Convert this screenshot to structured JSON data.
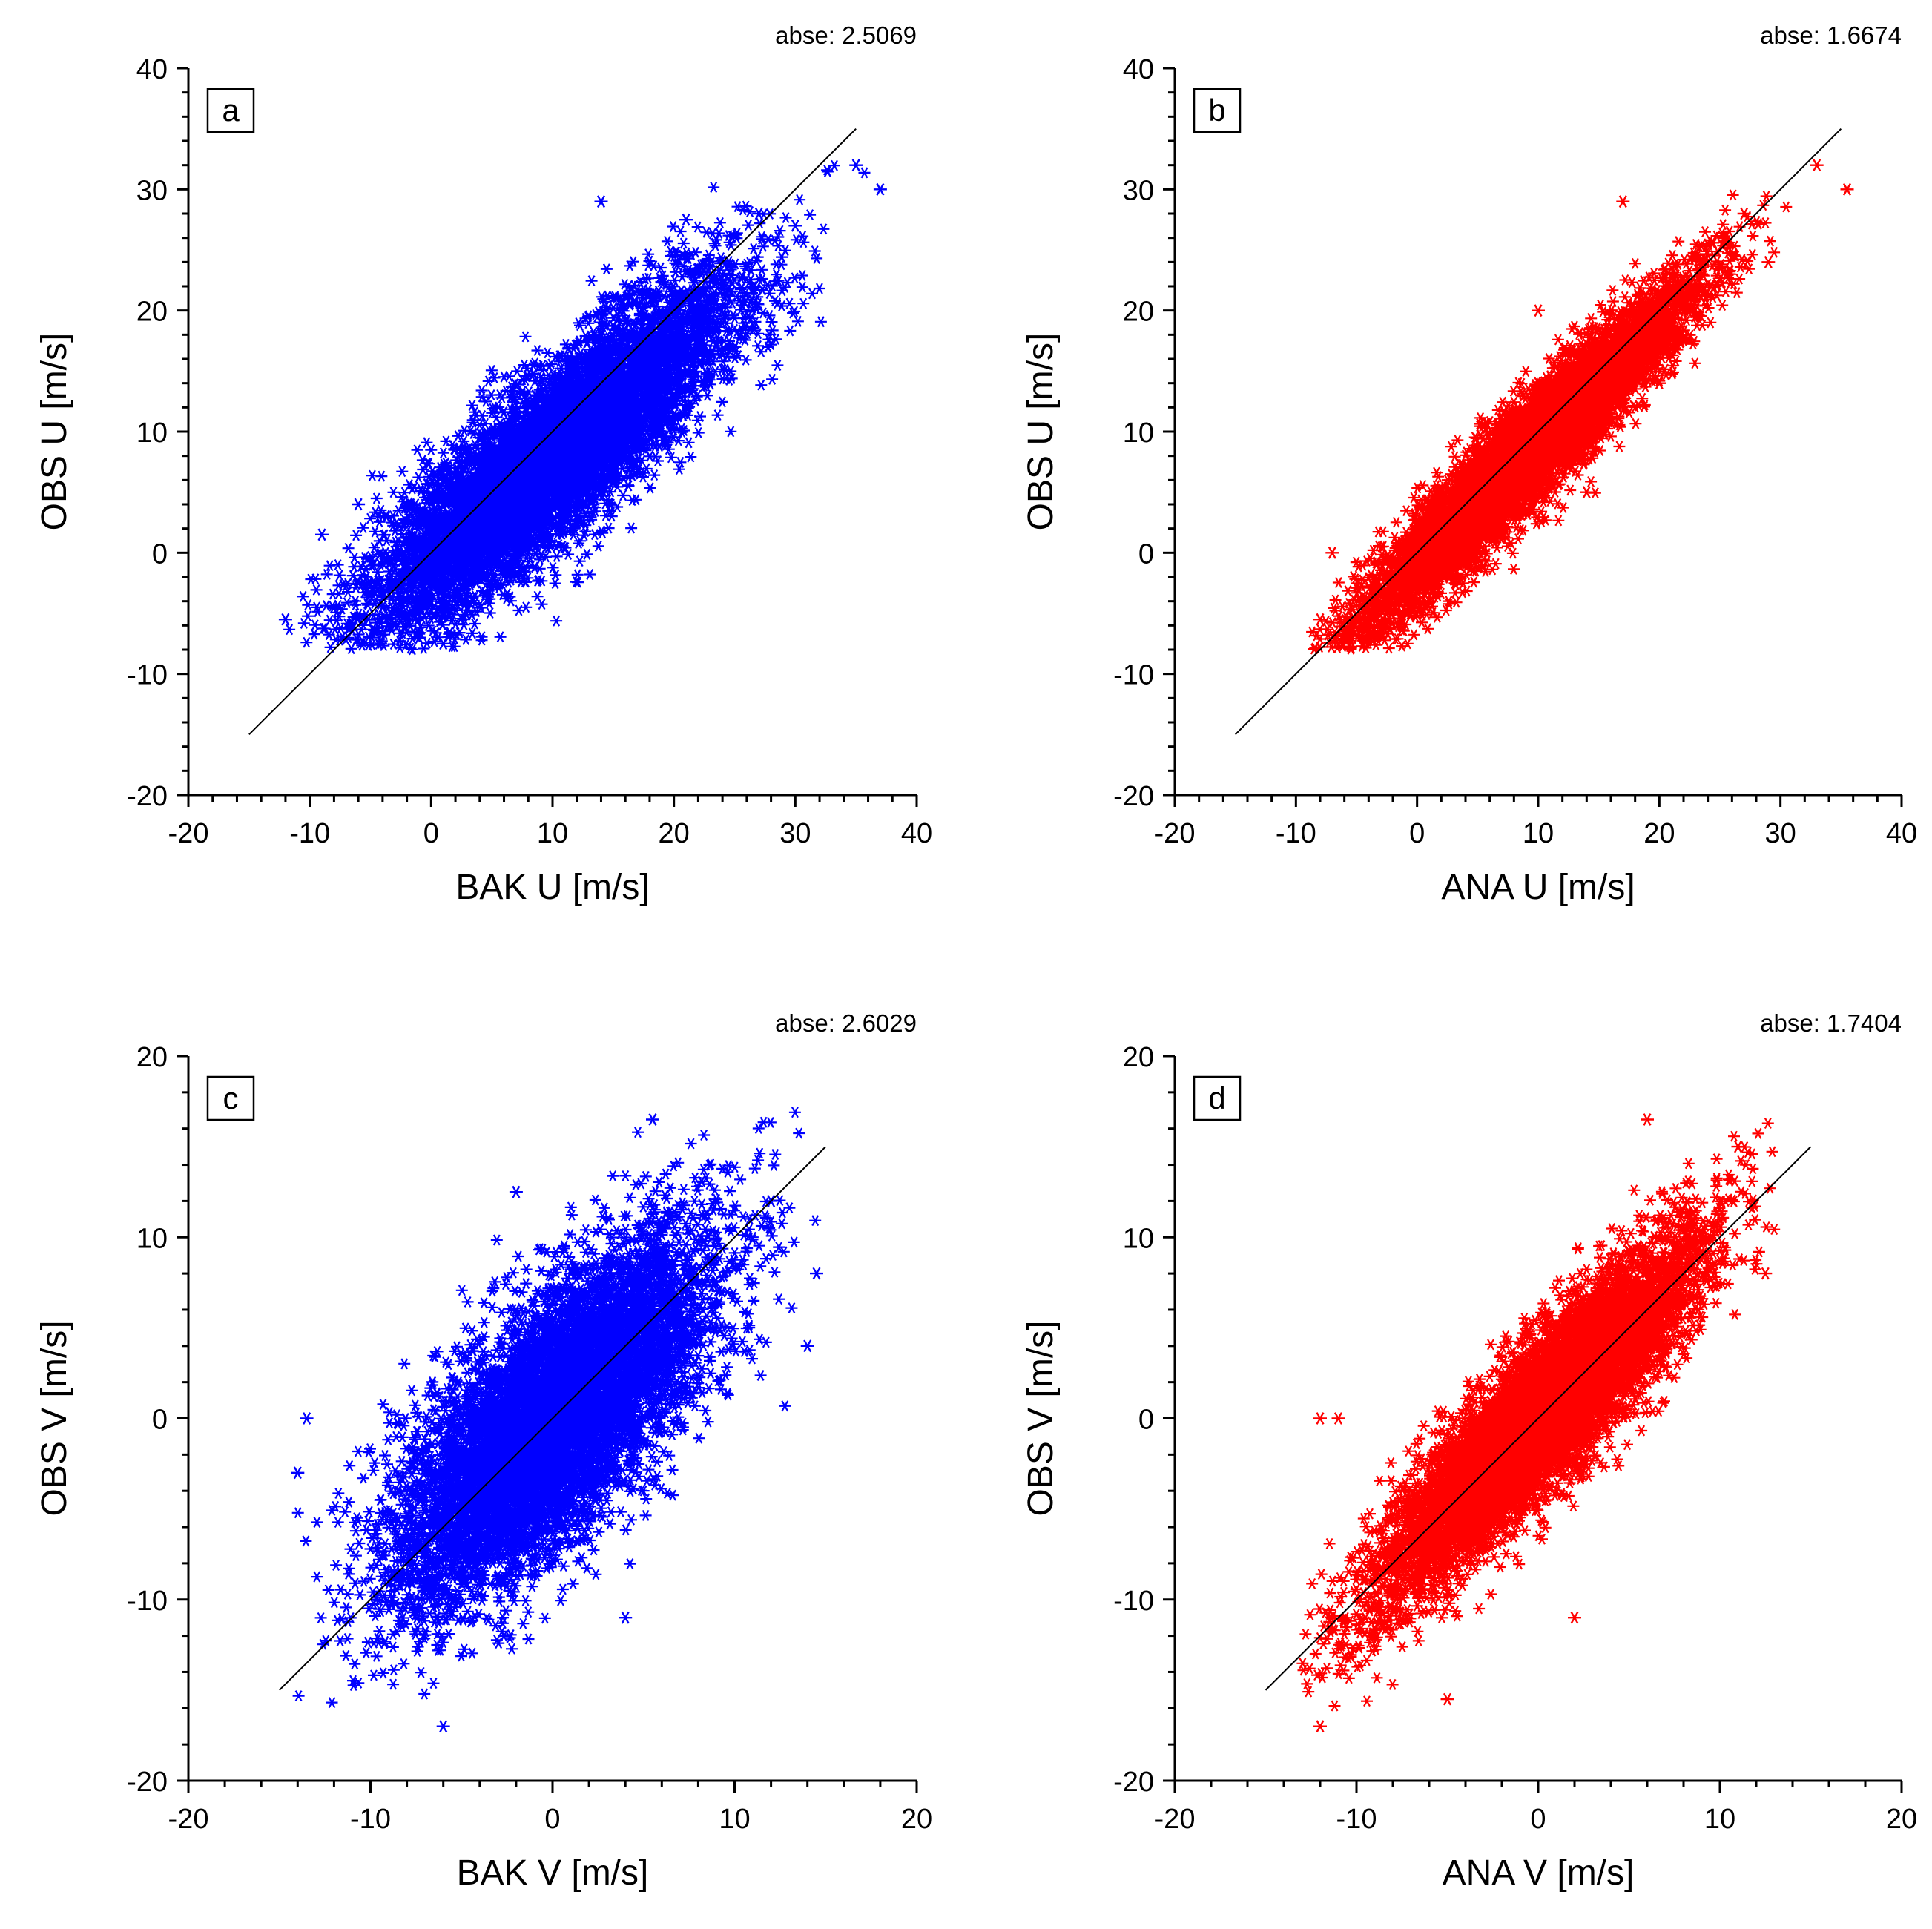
{
  "chart_data": [
    {
      "type": "scatter",
      "panel": "a",
      "xlabel": "BAK U [m/s]",
      "ylabel": "OBS U [m/s]",
      "stat_label": "abse:",
      "stat_value": "2.5069",
      "xlim": [
        -20,
        40
      ],
      "ylim": [
        -20,
        40
      ],
      "ticks": [
        -20,
        -10,
        0,
        10,
        20,
        30,
        40
      ],
      "reference_line": [
        [
          -15,
          -15
        ],
        [
          35,
          35
        ]
      ],
      "marker": "asterisk",
      "color": "#0000ff",
      "cloud": {
        "x_center": 10,
        "y_center": 8,
        "x_sd": 7.4,
        "y_sd": 7.0,
        "r": 0.86,
        "x_range": [
          -12,
          37
        ],
        "y_range": [
          -8,
          32
        ],
        "count": 7000
      },
      "points": [
        [
          14,
          29
        ],
        [
          37,
          30
        ],
        [
          35,
          32
        ],
        [
          27,
          28
        ],
        [
          30,
          27
        ],
        [
          21,
          27.5
        ],
        [
          -12,
          -5.5
        ],
        [
          -9,
          1.5
        ],
        [
          -6,
          4
        ],
        [
          1,
          -7.5
        ],
        [
          -1,
          -7
        ]
      ]
    },
    {
      "type": "scatter",
      "panel": "b",
      "xlabel": "ANA U [m/s]",
      "ylabel": "OBS U [m/s]",
      "stat_label": "abse:",
      "stat_value": "1.6674",
      "xlim": [
        -20,
        40
      ],
      "ylim": [
        -20,
        40
      ],
      "ticks": [
        -20,
        -10,
        0,
        10,
        20,
        30,
        40
      ],
      "reference_line": [
        [
          -15,
          -15
        ],
        [
          35,
          35
        ]
      ],
      "marker": "asterisk",
      "color": "#ff0000",
      "cloud": {
        "x_center": 9,
        "y_center": 8,
        "x_sd": 6.8,
        "y_sd": 7.0,
        "r": 0.95,
        "x_range": [
          -9,
          36
        ],
        "y_range": [
          -8,
          32
        ],
        "count": 7000
      },
      "points": [
        [
          17,
          29
        ],
        [
          33,
          32
        ],
        [
          35.5,
          30
        ],
        [
          29,
          24
        ],
        [
          27,
          28
        ],
        [
          -8,
          -5.5
        ],
        [
          -7,
          0
        ],
        [
          10,
          20
        ],
        [
          20,
          14
        ],
        [
          14,
          5
        ]
      ]
    },
    {
      "type": "scatter",
      "panel": "c",
      "xlabel": "BAK V [m/s]",
      "ylabel": "OBS V [m/s]",
      "stat_label": "abse:",
      "stat_value": "2.6029",
      "xlim": [
        -20,
        20
      ],
      "ylim": [
        -20,
        20
      ],
      "ticks": [
        -20,
        -10,
        0,
        10,
        20
      ],
      "reference_line": [
        [
          -15,
          -15
        ],
        [
          15,
          15
        ]
      ],
      "marker": "asterisk",
      "color": "#0000ff",
      "cloud": {
        "x_center": 0,
        "y_center": 0,
        "x_sd": 4.3,
        "y_sd": 4.9,
        "r": 0.71,
        "x_range": [
          -14,
          15
        ],
        "y_range": [
          -17,
          17
        ],
        "count": 7000
      },
      "points": [
        [
          5.5,
          16.5
        ],
        [
          -2,
          12.5
        ],
        [
          -14,
          -3
        ],
        [
          -13.5,
          0
        ],
        [
          -6,
          -17
        ],
        [
          14.5,
          8
        ],
        [
          12,
          12
        ],
        [
          4,
          -11
        ],
        [
          14,
          4
        ]
      ]
    },
    {
      "type": "scatter",
      "panel": "d",
      "xlabel": "ANA V [m/s]",
      "ylabel": "OBS V [m/s]",
      "stat_label": "abse:",
      "stat_value": "1.7404",
      "xlim": [
        -20,
        20
      ],
      "ylim": [
        -20,
        20
      ],
      "ticks": [
        -20,
        -10,
        0,
        10,
        20
      ],
      "reference_line": [
        [
          -15,
          -15
        ],
        [
          15,
          15
        ]
      ],
      "marker": "asterisk",
      "color": "#ff0000",
      "cloud": {
        "x_center": 0,
        "y_center": 0,
        "x_sd": 4.4,
        "y_sd": 4.9,
        "r": 0.9,
        "x_range": [
          -13,
          13
        ],
        "y_range": [
          -17,
          17
        ],
        "count": 7000
      },
      "points": [
        [
          -12,
          0
        ],
        [
          -11,
          0
        ],
        [
          -12,
          -17
        ],
        [
          6,
          16.5
        ],
        [
          12.5,
          8
        ],
        [
          11,
          15
        ],
        [
          2,
          -11
        ],
        [
          -5,
          -15.5
        ]
      ]
    }
  ]
}
